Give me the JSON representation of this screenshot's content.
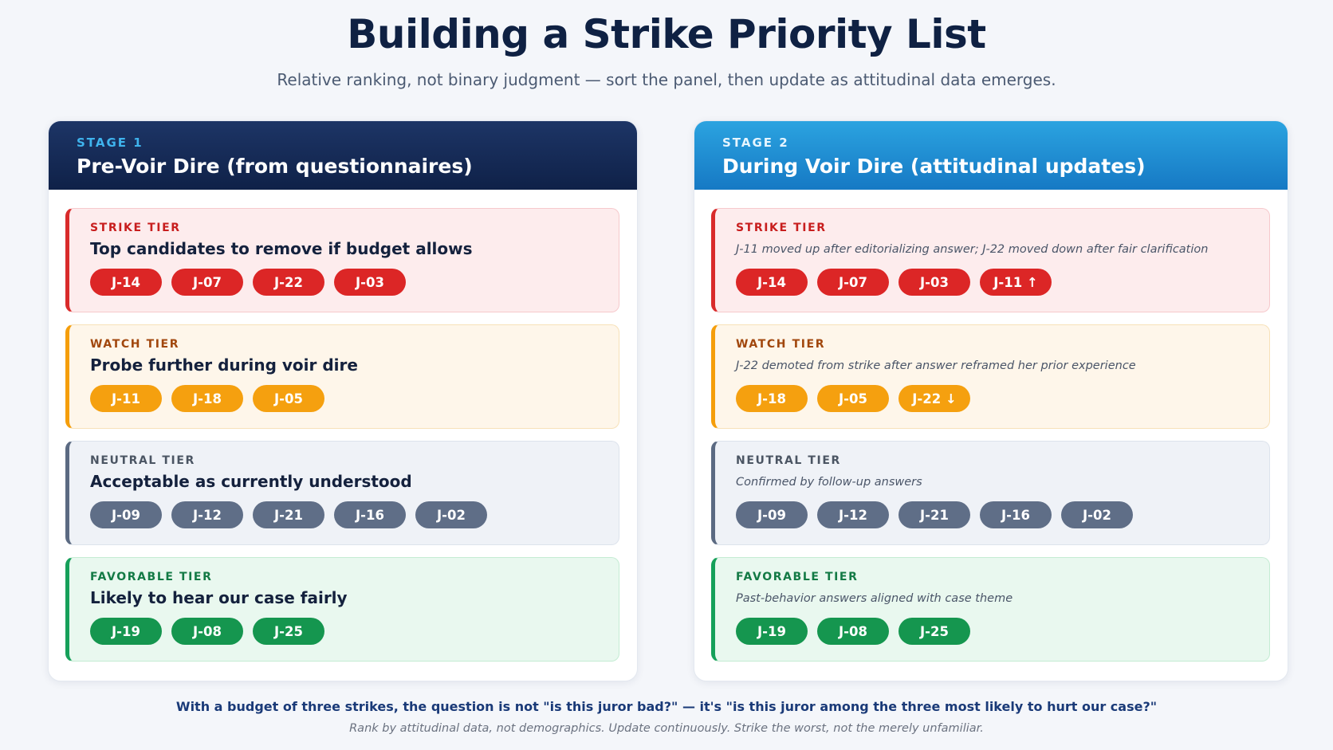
{
  "header": {
    "title": "Building a Strike Priority List",
    "subtitle": "Relative ranking, not binary judgment — sort the panel, then update as attitudinal data emerges."
  },
  "stages": [
    {
      "label": "STAGE 1",
      "title": "Pre-Voir Dire (from questionnaires)",
      "tiers": [
        {
          "label": "STRIKE TIER",
          "description": "Top candidates to remove if budget allows",
          "jurors": [
            "J-14",
            "J-07",
            "J-22",
            "J-03"
          ]
        },
        {
          "label": "WATCH TIER",
          "description": "Probe further during voir dire",
          "jurors": [
            "J-11",
            "J-18",
            "J-05"
          ]
        },
        {
          "label": "NEUTRAL TIER",
          "description": "Acceptable as currently understood",
          "jurors": [
            "J-09",
            "J-12",
            "J-21",
            "J-16",
            "J-02"
          ]
        },
        {
          "label": "FAVORABLE TIER",
          "description": "Likely to hear our case fairly",
          "jurors": [
            "J-19",
            "J-08",
            "J-25"
          ]
        }
      ]
    },
    {
      "label": "STAGE 2",
      "title": "During Voir Dire (attitudinal updates)",
      "tiers": [
        {
          "label": "STRIKE TIER",
          "description": "J-11 moved up after editorializing answer; J-22 moved down after fair clarification",
          "jurors": [
            "J-14",
            "J-07",
            "J-03",
            "J-11 ↑"
          ]
        },
        {
          "label": "WATCH TIER",
          "description": "J-22 demoted from strike after answer reframed her prior experience",
          "jurors": [
            "J-18",
            "J-05",
            "J-22 ↓"
          ]
        },
        {
          "label": "NEUTRAL TIER",
          "description": "Confirmed by follow-up answers",
          "jurors": [
            "J-09",
            "J-12",
            "J-21",
            "J-16",
            "J-02"
          ]
        },
        {
          "label": "FAVORABLE TIER",
          "description": "Past-behavior answers aligned with case theme",
          "jurors": [
            "J-19",
            "J-08",
            "J-25"
          ]
        }
      ]
    }
  ],
  "footer": {
    "takeaway": "With a budget of three strikes, the question is not \"is this juror bad?\" — it's \"is this juror among the three most likely to hurt our case?\"",
    "note": "Rank by attitudinal data, not demographics. Update continuously. Strike the worst, not the merely unfamiliar."
  }
}
